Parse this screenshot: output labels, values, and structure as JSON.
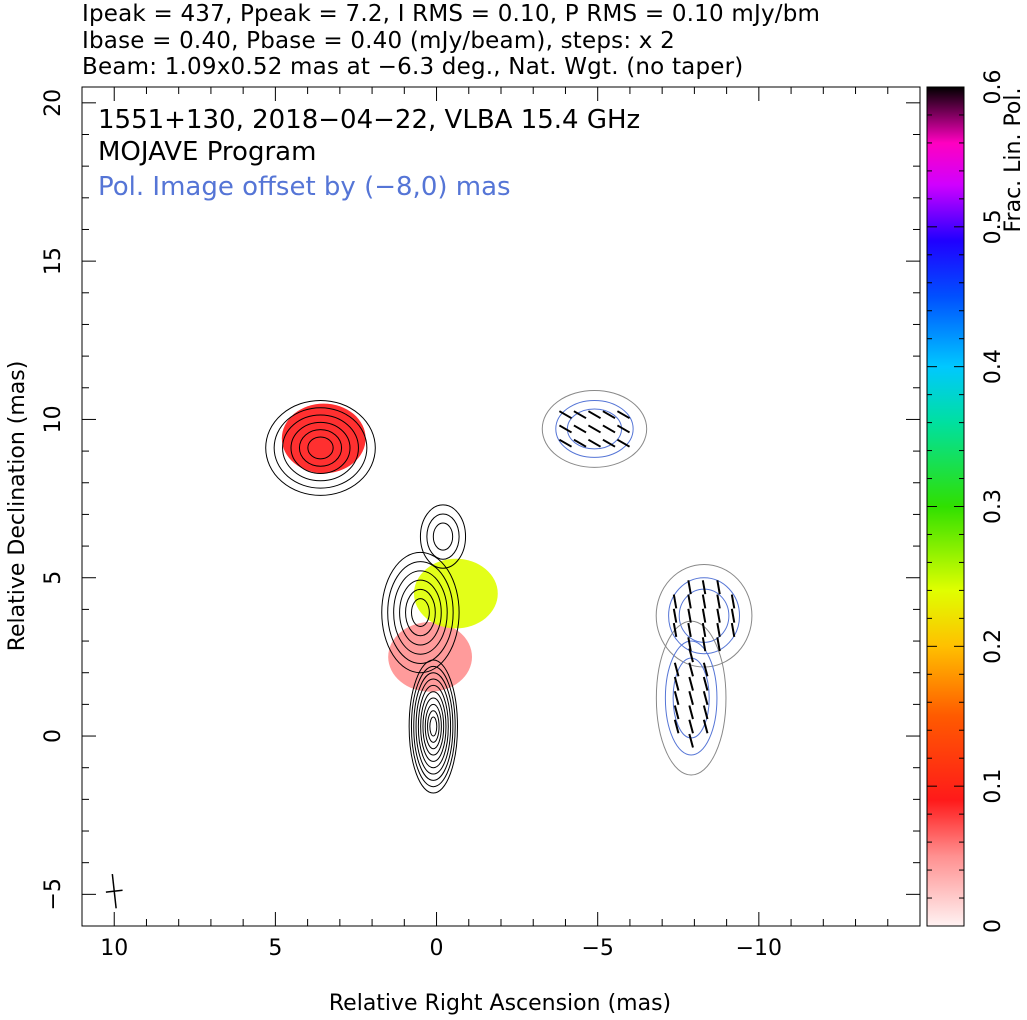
{
  "header": {
    "line1": "Ipeak = 437, Ppeak = 7.2, I RMS = 0.10, P RMS = 0.10 mJy/bm",
    "line2": "Ibase = 0.40, Pbase = 0.40 (mJy/beam), steps: x 2",
    "line3": "Beam: 1.09x0.52 mas at −6.3 deg., Nat. Wgt. (no taper)"
  },
  "annotations": {
    "source": "1551+130, 2018−04−22, VLBA 15.4 GHz",
    "program": "MOJAVE Program",
    "offset_note": "Pol. Image offset by (−8,0) mas",
    "offset_color": "#5575d6"
  },
  "chart_data": {
    "type": "heatmap",
    "title": "1551+130, 2018−04−22, VLBA 15.4 GHz",
    "xlabel": "Relative Right Ascension (mas)",
    "ylabel": "Relative Declination (mas)",
    "xlim": [
      11,
      -15
    ],
    "ylim": [
      -6,
      20.5
    ],
    "x_ticks": [
      10,
      5,
      0,
      -5,
      -10
    ],
    "x_tick_labels": [
      "10",
      "5",
      "0",
      "−5",
      "−10"
    ],
    "y_ticks": [
      -5,
      0,
      5,
      10,
      15,
      20
    ],
    "y_tick_labels": [
      "−5",
      "0",
      "5",
      "10",
      "15",
      "20"
    ],
    "colorbar": {
      "label": "Frac. Lin. Pol.",
      "range": [
        0,
        0.6
      ],
      "ticks": [
        0,
        0.1,
        0.2,
        0.3,
        0.4,
        0.5,
        0.6
      ],
      "tick_labels": [
        "0",
        "0.1",
        "0.2",
        "0.3",
        "0.4",
        "0.5",
        "0.6"
      ],
      "stops": [
        [
          0.0,
          "#fff2f2"
        ],
        [
          0.05,
          "#ff9090"
        ],
        [
          0.09,
          "#ff1a1a"
        ],
        [
          0.15,
          "#ff5a00"
        ],
        [
          0.2,
          "#ffc000"
        ],
        [
          0.24,
          "#e0ff00"
        ],
        [
          0.3,
          "#30e000"
        ],
        [
          0.36,
          "#00e0a0"
        ],
        [
          0.4,
          "#00c8ff"
        ],
        [
          0.45,
          "#0050ff"
        ],
        [
          0.49,
          "#2000ff"
        ],
        [
          0.53,
          "#d000ff"
        ],
        [
          0.56,
          "#ff00c0"
        ],
        [
          0.58,
          "#800060"
        ],
        [
          0.6,
          "#000000"
        ]
      ]
    },
    "intensity_components": [
      {
        "x": 0.1,
        "y": 0.3,
        "sx": 0.75,
        "sy": 2.1,
        "levels": 10
      },
      {
        "x": 0.5,
        "y": 3.9,
        "sx": 1.2,
        "sy": 1.9,
        "levels": 6
      },
      {
        "x": -0.2,
        "y": 6.3,
        "sx": 0.7,
        "sy": 1.0,
        "levels": 3
      },
      {
        "x": 3.6,
        "y": 9.1,
        "sx": 1.7,
        "sy": 1.5,
        "levels": 6
      }
    ],
    "pol_regions": [
      {
        "x": -4.9,
        "y": 9.7,
        "sx": 1.2,
        "sy": 0.9,
        "pa_deg": 60
      },
      {
        "x": -8.3,
        "y": 3.8,
        "sx": 1.1,
        "sy": 1.2,
        "pa_deg": 10
      },
      {
        "x": -7.9,
        "y": 1.2,
        "sx": 0.8,
        "sy": 1.8,
        "pa_deg": 15
      }
    ],
    "frac_pol_regions": [
      {
        "x": 3.5,
        "y": 9.4,
        "value": 0.12
      },
      {
        "x": 0.2,
        "y": 2.5,
        "value": 0.08
      },
      {
        "x": -0.6,
        "y": 4.5,
        "value": 0.26
      }
    ],
    "beam": {
      "major_mas": 1.09,
      "minor_mas": 0.52,
      "pa_deg": -6.3,
      "x": 10,
      "y": -4.9
    }
  }
}
